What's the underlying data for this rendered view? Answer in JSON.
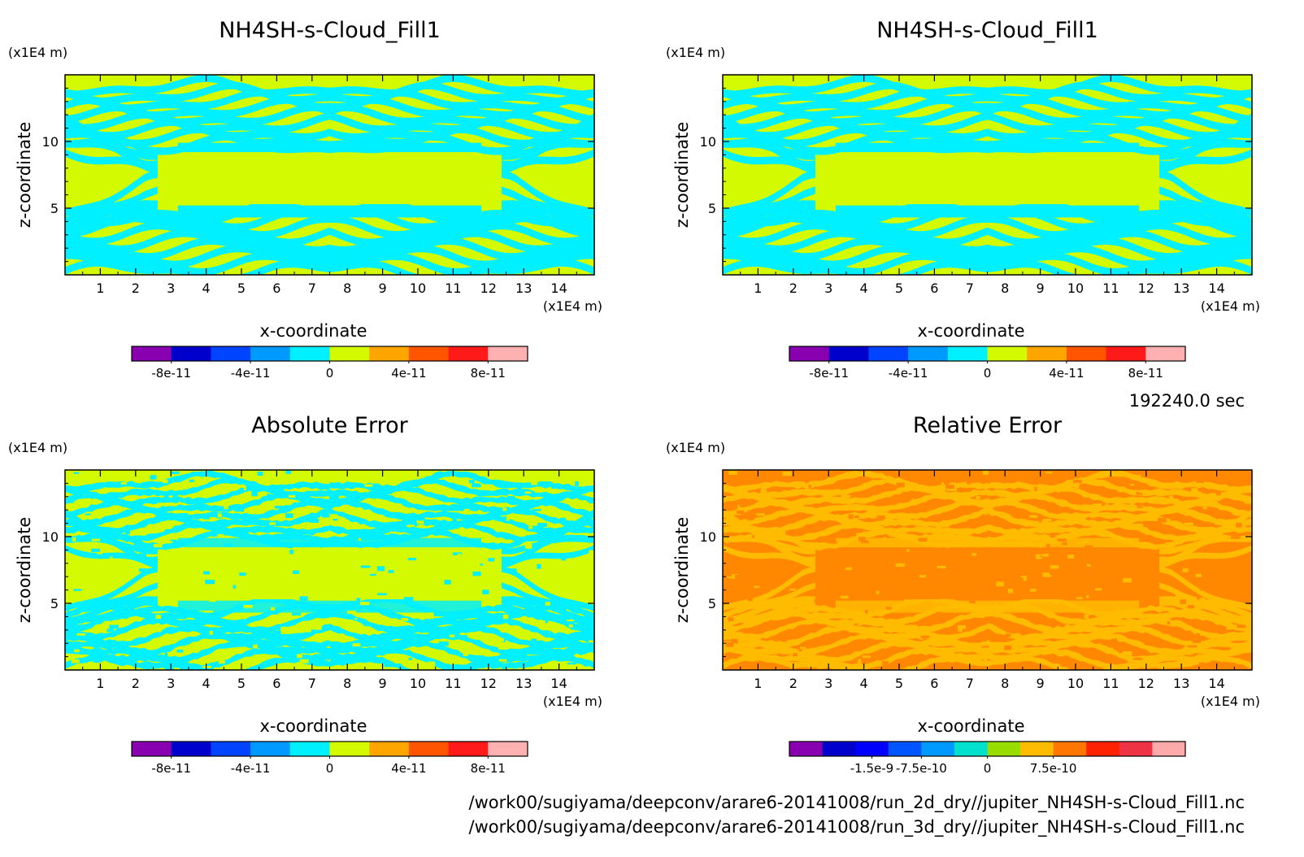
{
  "chart_data": [
    {
      "type": "heatmap",
      "title": "NH4SH-s-Cloud_Fill1",
      "xlabel": "x-coordinate",
      "ylabel": "z-coordinate",
      "x_unit": "(x1E4 m)",
      "y_unit": "(x1E4 m)",
      "xlim": [
        0,
        15
      ],
      "ylim": [
        0,
        15
      ],
      "x_ticks": [
        "1",
        "2",
        "3",
        "4",
        "5",
        "6",
        "7",
        "8",
        "9",
        "10",
        "11",
        "12",
        "13",
        "14"
      ],
      "y_ticks": [
        "5",
        "10"
      ],
      "pattern": "banded",
      "fill_classes": {
        "background": "#d4fa00",
        "band": "#00f0ff"
      },
      "colorbar": {
        "colors": [
          "#8800b0",
          "#0000cc",
          "#0044ff",
          "#0099ff",
          "#00f0ff",
          "#d4fa00",
          "#ffa500",
          "#ff5500",
          "#ff1a1a",
          "#ffb0b0"
        ],
        "labels": [
          "-8e-11",
          "-4e-11",
          "0",
          "4e-11",
          "8e-11"
        ]
      }
    },
    {
      "type": "heatmap",
      "title": "NH4SH-s-Cloud_Fill1",
      "xlabel": "x-coordinate",
      "ylabel": "z-coordinate",
      "x_unit": "(x1E4 m)",
      "y_unit": "(x1E4 m)",
      "xlim": [
        0,
        15
      ],
      "ylim": [
        0,
        15
      ],
      "x_ticks": [
        "1",
        "2",
        "3",
        "4",
        "5",
        "6",
        "7",
        "8",
        "9",
        "10",
        "11",
        "12",
        "13",
        "14"
      ],
      "y_ticks": [
        "5",
        "10"
      ],
      "pattern": "banded",
      "fill_classes": {
        "background": "#d4fa00",
        "band": "#00f0ff"
      },
      "colorbar": {
        "colors": [
          "#8800b0",
          "#0000cc",
          "#0044ff",
          "#0099ff",
          "#00f0ff",
          "#d4fa00",
          "#ffa500",
          "#ff5500",
          "#ff1a1a",
          "#ffb0b0"
        ],
        "labels": [
          "-8e-11",
          "-4e-11",
          "0",
          "4e-11",
          "8e-11"
        ]
      }
    },
    {
      "type": "heatmap",
      "title": "Absolute Error",
      "xlabel": "x-coordinate",
      "ylabel": "z-coordinate",
      "x_unit": "(x1E4 m)",
      "y_unit": "(x1E4 m)",
      "xlim": [
        0,
        15
      ],
      "ylim": [
        0,
        15
      ],
      "x_ticks": [
        "1",
        "2",
        "3",
        "4",
        "5",
        "6",
        "7",
        "8",
        "9",
        "10",
        "11",
        "12",
        "13",
        "14"
      ],
      "y_ticks": [
        "5",
        "10"
      ],
      "pattern": "noisy",
      "fill_classes": {
        "background": "#d4fa00",
        "band": "#00f0ff"
      },
      "colorbar": {
        "colors": [
          "#8800b0",
          "#0000cc",
          "#0044ff",
          "#0099ff",
          "#00f0ff",
          "#d4fa00",
          "#ffa500",
          "#ff5500",
          "#ff1a1a",
          "#ffb0b0"
        ],
        "labels": [
          "-8e-11",
          "-4e-11",
          "0",
          "4e-11",
          "8e-11"
        ]
      }
    },
    {
      "type": "heatmap",
      "title": "Relative Error",
      "xlabel": "x-coordinate",
      "ylabel": "z-coordinate",
      "x_unit": "(x1E4 m)",
      "y_unit": "(x1E4 m)",
      "xlim": [
        0,
        15
      ],
      "ylim": [
        0,
        15
      ],
      "x_ticks": [
        "1",
        "2",
        "3",
        "4",
        "5",
        "6",
        "7",
        "8",
        "9",
        "10",
        "11",
        "12",
        "13",
        "14"
      ],
      "y_ticks": [
        "5",
        "10"
      ],
      "pattern": "noisy",
      "fill_classes": {
        "background": "#ff8800",
        "band": "#ffbb00"
      },
      "colorbar": {
        "colors": [
          "#8800b0",
          "#0000cc",
          "#0000ff",
          "#0055ff",
          "#0099ff",
          "#00e0cc",
          "#99dd00",
          "#ffbb00",
          "#ff7700",
          "#ff2200",
          "#ee3344",
          "#ffaaaa"
        ],
        "labels": [
          "-1.5e-9",
          "-7.5e-10",
          "0",
          "7.5e-10"
        ]
      }
    }
  ],
  "time_label": "192240.0 sec",
  "file_paths": [
    "/work00/sugiyama/deepconv/arare6-20141008/run_2d_dry//jupiter_NH4SH-s-Cloud_Fill1.nc",
    "/work00/sugiyama/deepconv/arare6-20141008/run_3d_dry//jupiter_NH4SH-s-Cloud_Fill1.nc"
  ]
}
